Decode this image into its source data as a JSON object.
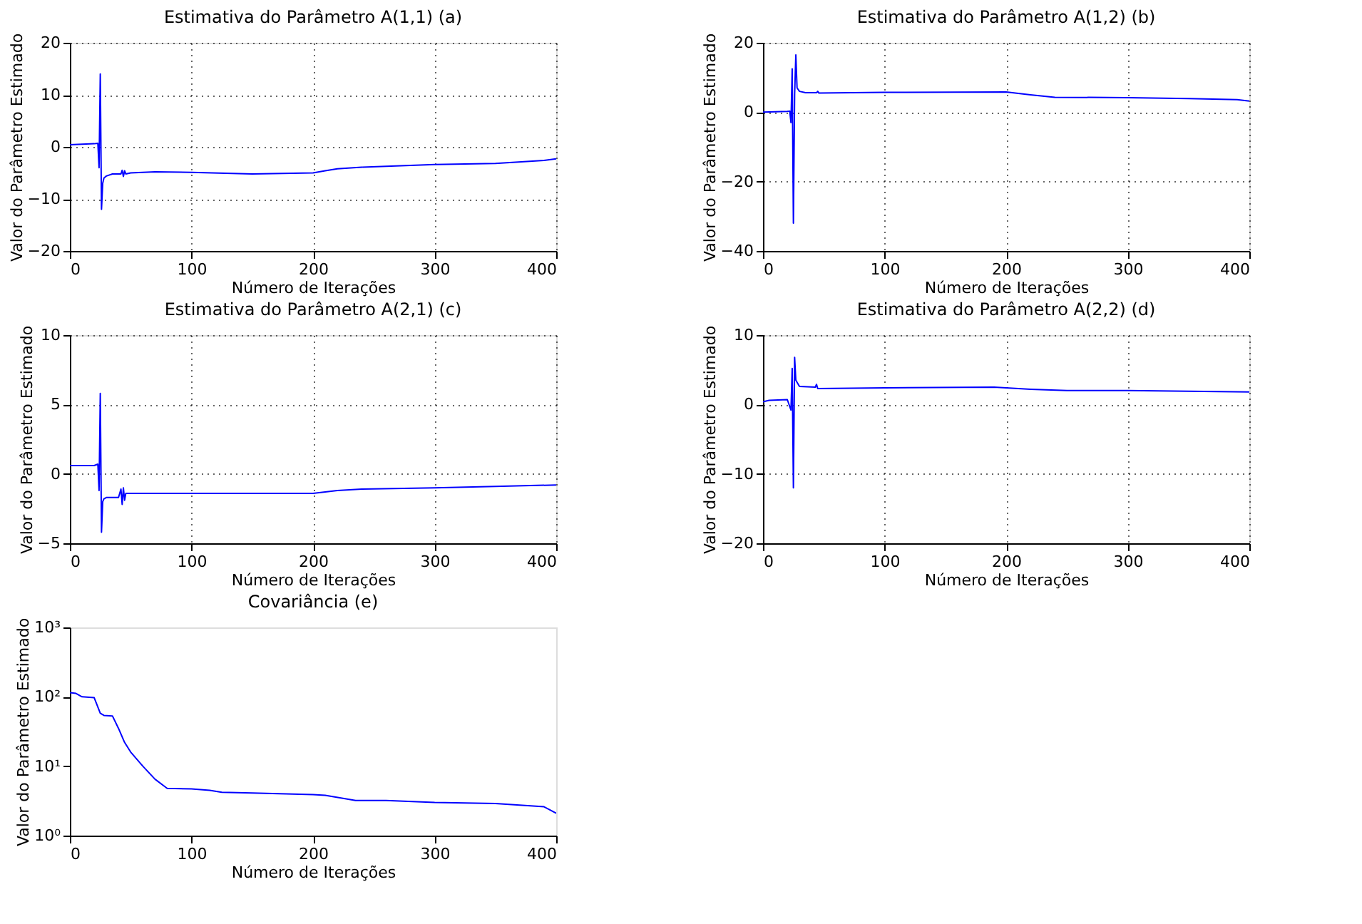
{
  "chart_data": [
    {
      "type": "line",
      "title": "Estimativa do Parâmetro A(1,1) (a)",
      "xlabel": "Número de Iterações",
      "ylabel": "Valor do Parâmetro Estimado",
      "xlim": [
        0,
        400
      ],
      "xticks": [
        0,
        100,
        200,
        300,
        400
      ],
      "ylim": [
        -20,
        20
      ],
      "yticks": [
        -20,
        -10,
        0,
        10,
        20
      ],
      "grid": true,
      "series": [
        {
          "color": "#0000ff",
          "x": [
            0,
            10,
            20,
            23,
            24,
            25,
            26,
            27,
            28,
            30,
            35,
            42,
            43,
            44,
            45,
            46,
            50,
            70,
            100,
            150,
            200,
            210,
            220,
            240,
            300,
            350,
            390,
            400
          ],
          "values": [
            0.4,
            0.5,
            0.6,
            0.7,
            -4,
            14,
            -12,
            -7,
            -6,
            -5.6,
            -5.2,
            -5.2,
            -4.5,
            -5.7,
            -4.6,
            -5.2,
            -5,
            -4.8,
            -4.9,
            -5.2,
            -5,
            -4.6,
            -4.2,
            -3.9,
            -3.4,
            -3.2,
            -2.6,
            -2.3
          ]
        }
      ]
    },
    {
      "type": "line",
      "title": "Estimativa do Parâmetro A(1,2) (b)",
      "xlabel": "Número de Iterações",
      "ylabel": "Valor do Parâmetro Estimado",
      "xlim": [
        0,
        400
      ],
      "xticks": [
        0,
        100,
        200,
        300,
        400
      ],
      "ylim": [
        -40,
        20
      ],
      "yticks": [
        -40,
        -20,
        0,
        20
      ],
      "grid": true,
      "series": [
        {
          "color": "#0000ff",
          "x": [
            0,
            20,
            22,
            23,
            24,
            25,
            26,
            27,
            28,
            30,
            35,
            44,
            45,
            46,
            100,
            200,
            220,
            240,
            300,
            350,
            390,
            400
          ],
          "values": [
            0,
            0.2,
            0.3,
            -3,
            12.5,
            -32,
            5,
            16.5,
            7,
            6,
            5.6,
            5.6,
            6,
            5.5,
            5.7,
            5.8,
            5,
            4.3,
            4.2,
            3.9,
            3.6,
            3.2
          ]
        }
      ]
    },
    {
      "type": "line",
      "title": "Estimativa do Parâmetro A(2,1) (c)",
      "xlabel": "Número de Iterações",
      "ylabel": "Valor do Parâmetro Estimado",
      "xlim": [
        0,
        400
      ],
      "xticks": [
        0,
        100,
        200,
        300,
        400
      ],
      "ylim": [
        -5,
        10
      ],
      "yticks": [
        -5,
        0,
        5,
        10
      ],
      "grid": true,
      "series": [
        {
          "color": "#0000ff",
          "x": [
            0,
            20,
            23,
            24,
            25,
            26,
            27,
            28,
            30,
            40,
            42,
            43,
            44,
            45,
            46,
            50,
            100,
            200,
            220,
            240,
            300,
            350,
            400
          ],
          "values": [
            0.6,
            0.6,
            0.7,
            -1.2,
            5.8,
            -4.2,
            -2,
            -1.8,
            -1.7,
            -1.7,
            -1.1,
            -2.2,
            -1,
            -1.9,
            -1.4,
            -1.4,
            -1.4,
            -1.4,
            -1.2,
            -1.1,
            -1.0,
            -0.9,
            -0.8
          ]
        }
      ]
    },
    {
      "type": "line",
      "title": "Estimativa do Parâmetro A(2,2) (d)",
      "xlabel": "Número de Iterações",
      "ylabel": "Valor do Parâmetro Estimado",
      "xlim": [
        0,
        400
      ],
      "xticks": [
        0,
        100,
        200,
        300,
        400
      ],
      "ylim": [
        -20,
        10
      ],
      "yticks": [
        -20,
        -10,
        0,
        10
      ],
      "grid": true,
      "series": [
        {
          "color": "#0000ff",
          "x": [
            0,
            5,
            20,
            23,
            24,
            25,
            26,
            27,
            30,
            43,
            44,
            45,
            100,
            190,
            220,
            250,
            300,
            400
          ],
          "values": [
            0.4,
            0.6,
            0.7,
            -0.8,
            5.2,
            -12,
            6.8,
            3.5,
            2.6,
            2.5,
            2.9,
            2.3,
            2.4,
            2.5,
            2.2,
            2.0,
            2.0,
            1.8
          ]
        }
      ]
    },
    {
      "type": "line",
      "title": "Covariância (e)",
      "xlabel": "Número de Iterações",
      "ylabel": "Valor do Parâmetro Estimado",
      "xlim": [
        0,
        400
      ],
      "xticks": [
        0,
        100,
        200,
        300,
        400
      ],
      "ylim": [
        1,
        1000
      ],
      "yticks": [
        {
          "value": 1,
          "label": "10⁰"
        },
        {
          "value": 10,
          "label": "10¹"
        },
        {
          "value": 100,
          "label": "10²"
        },
        {
          "value": 1000,
          "label": "10³"
        }
      ],
      "log": "y",
      "series": [
        {
          "color": "#0000ff",
          "x": [
            0,
            5,
            10,
            20,
            25,
            28,
            35,
            40,
            45,
            50,
            60,
            70,
            80,
            100,
            115,
            125,
            150,
            200,
            210,
            235,
            260,
            300,
            350,
            390,
            400
          ],
          "values": [
            115,
            112,
            100,
            97,
            58,
            54,
            53,
            35,
            22,
            16,
            10,
            6.5,
            4.8,
            4.7,
            4.5,
            4.2,
            4.1,
            3.9,
            3.8,
            3.2,
            3.2,
            3.0,
            2.9,
            2.6,
            2.1
          ]
        }
      ]
    }
  ]
}
